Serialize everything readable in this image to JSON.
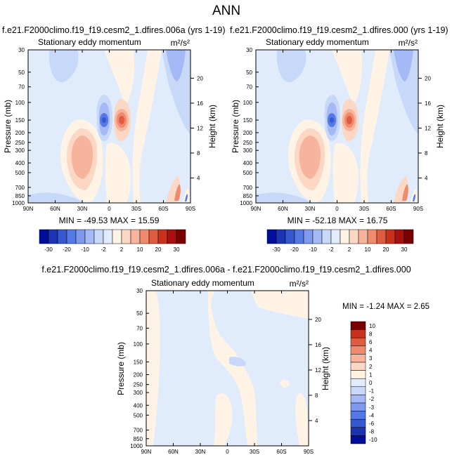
{
  "figure": {
    "title": "ANN"
  },
  "palettes": {
    "main": [
      "#000e9c",
      "#1c34b2",
      "#3658d0",
      "#5479e4",
      "#7e99ee",
      "#a4b9f5",
      "#c8d8f8",
      "#e0ecfc",
      "#fff3e6",
      "#fcd8c4",
      "#f7b49c",
      "#ef8a6c",
      "#e05c40",
      "#c7321e",
      "#a81010",
      "#7a0000"
    ],
    "diff": [
      "#000e9c",
      "#1c34b2",
      "#3658d0",
      "#5479e4",
      "#7e99ee",
      "#a4b9f5",
      "#c8d8f8",
      "#e0ecfc",
      "#fff3e6",
      "#fcd8c4",
      "#f7b49c",
      "#ef8a6c",
      "#e05c40",
      "#c7321e",
      "#7a0000"
    ]
  },
  "chart_data": [
    {
      "type": "heatmap",
      "title": "f.e21.F2000climo.f19_f19.cesm2_1.dfires.006a (yrs 1-19)",
      "subtitle": "Stationary eddy momentum",
      "units": "m²/s²",
      "ylabel": "Pressure (mb)",
      "y2label": "Height (km)",
      "x_ticks": [
        "90N",
        "60N",
        "30N",
        "0",
        "30S",
        "60S",
        "90S"
      ],
      "x_range": [
        90,
        -90
      ],
      "y_ticks": [
        30,
        50,
        70,
        100,
        150,
        200,
        250,
        300,
        400,
        500,
        700,
        850,
        1000
      ],
      "y_range": [
        30,
        1000
      ],
      "y_scale": "log",
      "y2_ticks": [
        20,
        16,
        12,
        8,
        4
      ],
      "stats": "MIN = -49.53  MAX = 15.59",
      "colorbar_labels": [
        "-30",
        "-20",
        "-10",
        "-2",
        "2",
        "10",
        "20",
        "30"
      ],
      "colorbar_orientation": "horizontal"
    },
    {
      "type": "heatmap",
      "title": "f.e21.F2000climo.f19_f19.cesm2_1.dfires.000 (yrs 1-19)",
      "subtitle": "Stationary eddy momentum",
      "units": "m²/s²",
      "ylabel": "Pressure (mb)",
      "y2label": "Height (km)",
      "x_ticks": [
        "90N",
        "60N",
        "30N",
        "0",
        "30S",
        "60S",
        "90S"
      ],
      "x_range": [
        90,
        -90
      ],
      "y_ticks": [
        30,
        50,
        70,
        100,
        150,
        200,
        250,
        300,
        400,
        500,
        700,
        850,
        1000
      ],
      "y_range": [
        30,
        1000
      ],
      "y_scale": "log",
      "y2_ticks": [
        20,
        16,
        12,
        8,
        4
      ],
      "stats": "MIN = -52.18  MAX = 16.75",
      "colorbar_labels": [
        "-30",
        "-20",
        "-10",
        "-2",
        "2",
        "10",
        "20",
        "30"
      ],
      "colorbar_orientation": "horizontal"
    },
    {
      "type": "heatmap",
      "title": "f.e21.F2000climo.f19_f19.cesm2_1.dfires.006a - f.e21.F2000climo.f19_f19.cesm2_1.dfires.000",
      "subtitle": "Stationary eddy momentum",
      "units": "m²/s²",
      "ylabel": "Pressure (mb)",
      "y2label": "Height (km)",
      "x_ticks": [
        "90N",
        "60N",
        "30N",
        "0",
        "30S",
        "60S",
        "90S"
      ],
      "x_range": [
        90,
        -90
      ],
      "y_ticks": [
        30,
        50,
        70,
        100,
        150,
        200,
        250,
        300,
        400,
        500,
        700,
        850,
        1000
      ],
      "y_range": [
        30,
        1000
      ],
      "y_scale": "log",
      "y2_ticks": [
        20,
        16,
        12,
        8,
        4
      ],
      "stats": "MIN = -1.24  MAX =  2.65",
      "colorbar_labels": [
        "10",
        "8",
        "6",
        "4",
        "3",
        "2",
        "1",
        "0",
        "-1",
        "-2",
        "-3",
        "-4",
        "-6",
        "-8",
        "-10"
      ],
      "colorbar_orientation": "vertical"
    }
  ]
}
